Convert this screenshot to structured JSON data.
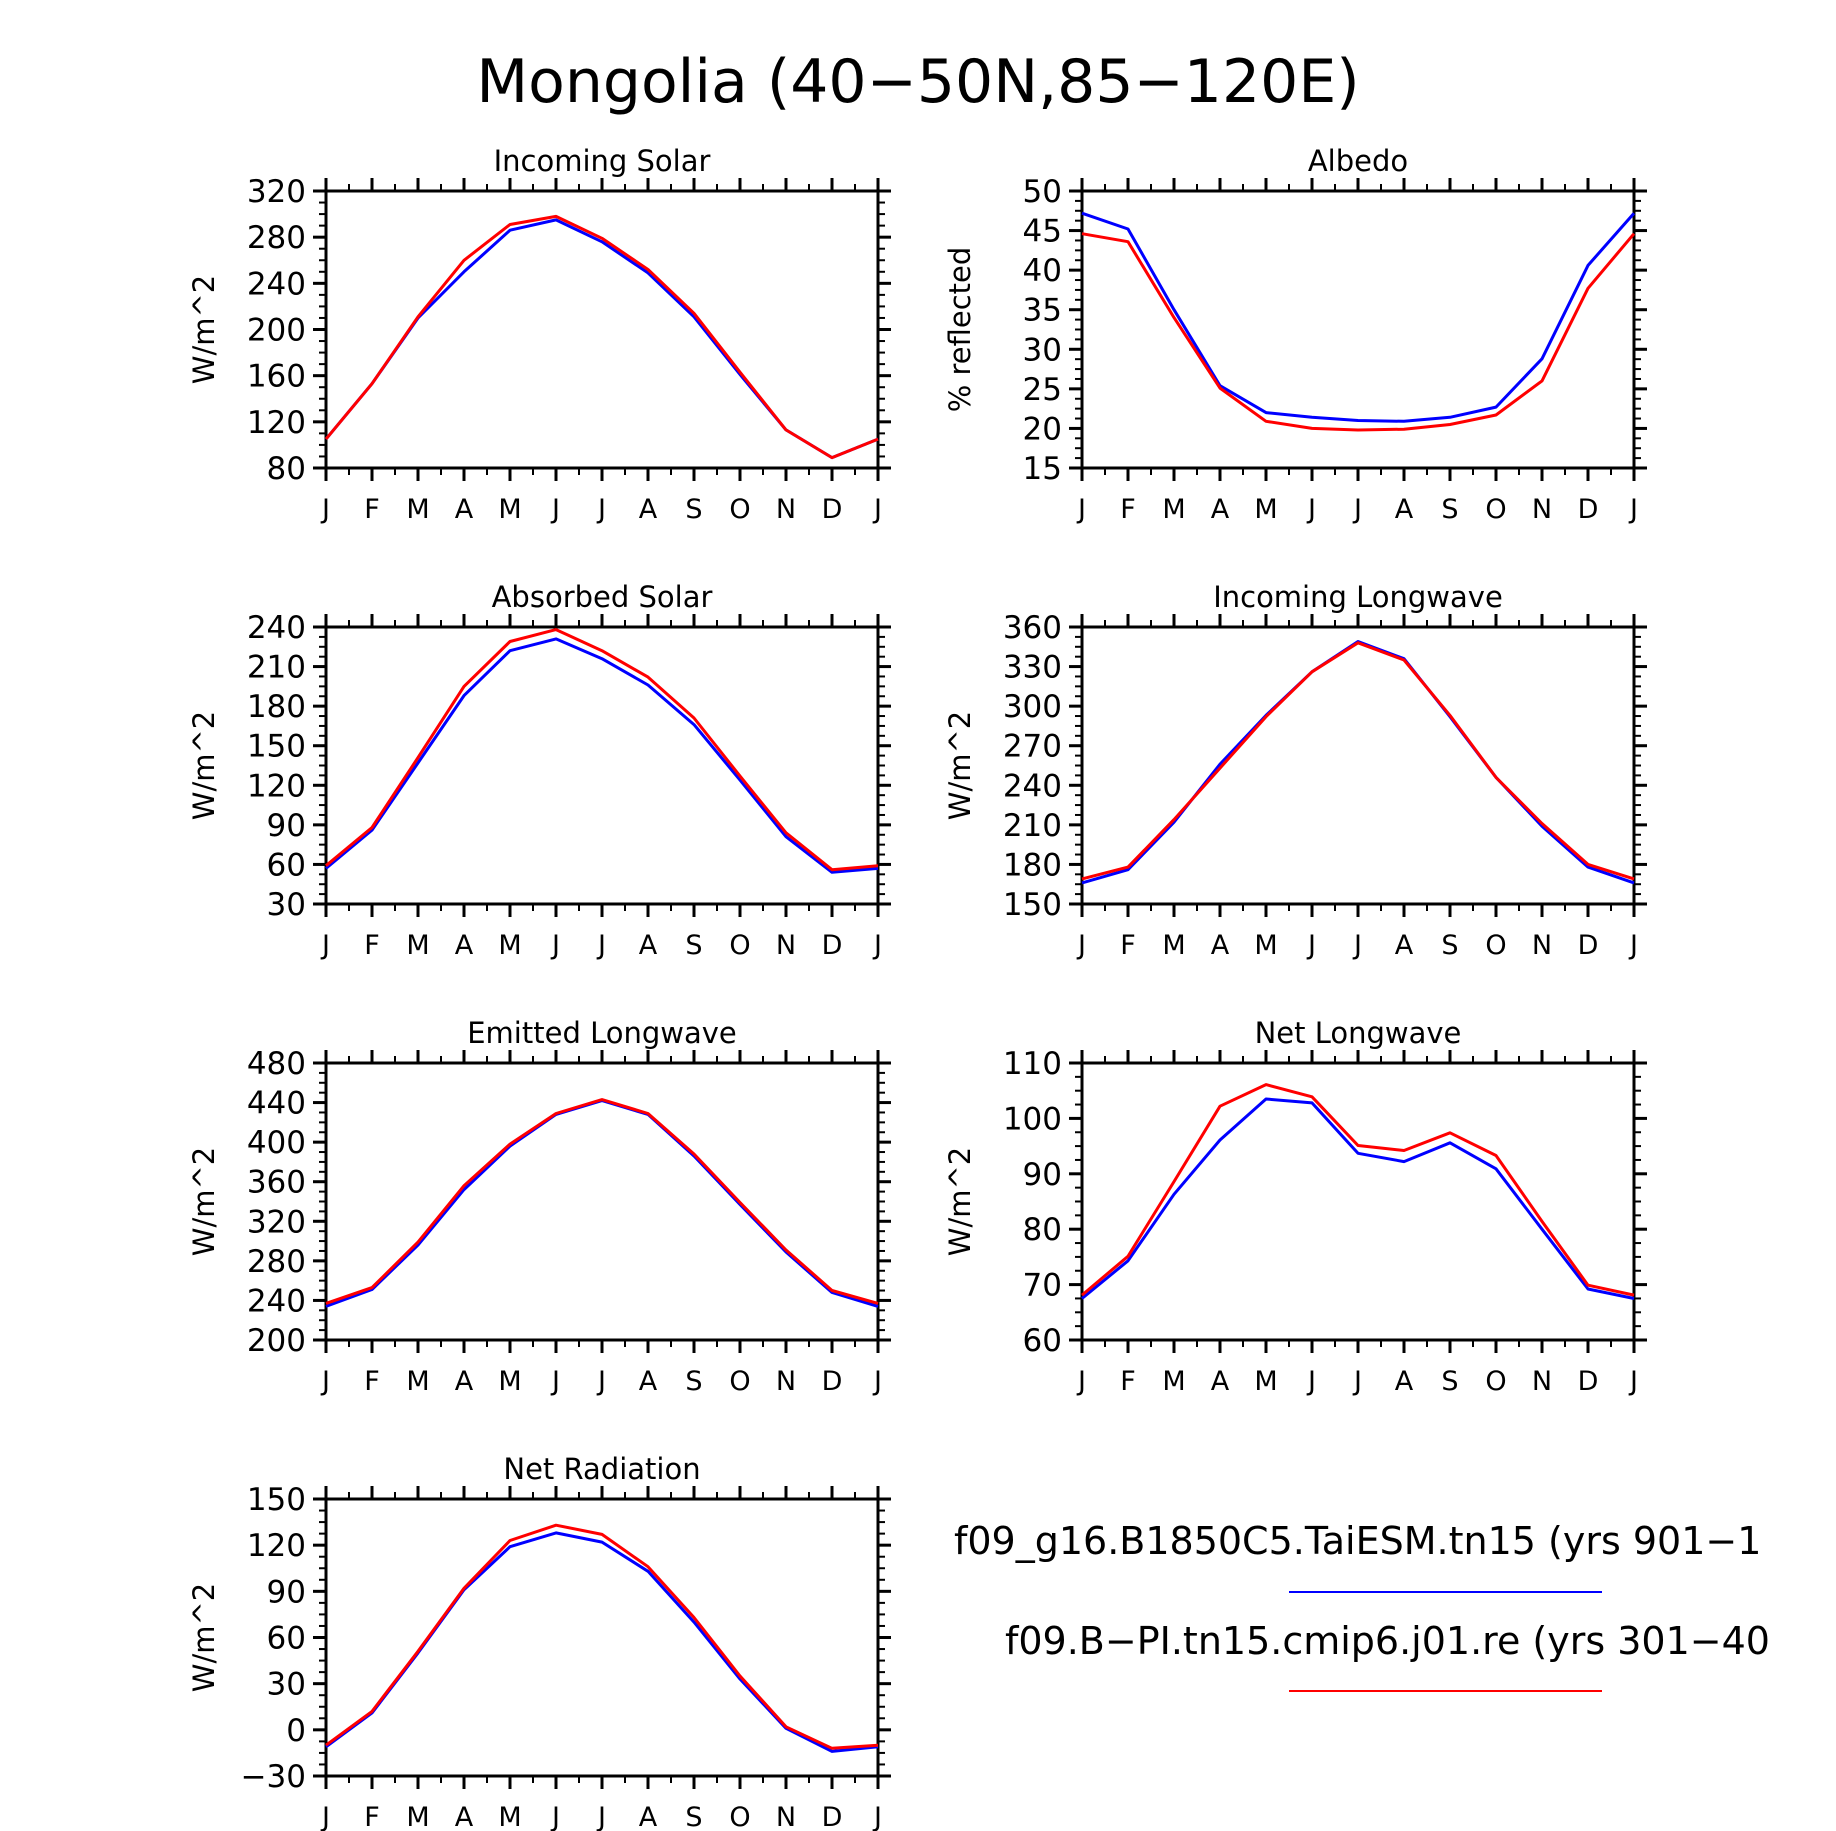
{
  "figure": {
    "title": "Mongolia (40−50N,85−120E)",
    "legend": [
      {
        "label": "f09_g16.B1850C5.TaiESM.tn15 (yrs 901−1",
        "color": "#0000ff"
      },
      {
        "label": "f09.B−PI.tn15.cmip6.j01.re (yrs 301−40",
        "color": "#ff0000"
      }
    ]
  },
  "colors": {
    "series1": "#0000ff",
    "series2": "#ff0000",
    "axis": "#000000"
  },
  "chart_data": [
    {
      "type": "line",
      "title": "Incoming Solar",
      "ylabel": "W/m^2",
      "x": [
        "J",
        "F",
        "M",
        "A",
        "M",
        "J",
        "J",
        "A",
        "S",
        "O",
        "N",
        "D",
        "J"
      ],
      "ylim": [
        80,
        320
      ],
      "yticks": [
        80,
        120,
        160,
        200,
        240,
        280,
        320
      ],
      "series": [
        {
          "values": [
            105,
            153,
            210,
            250,
            286,
            295,
            276,
            249,
            211,
            161,
            113,
            89,
            105
          ]
        },
        {
          "values": [
            105,
            153,
            211,
            260,
            291,
            298,
            279,
            252,
            214,
            163,
            113,
            89,
            105
          ]
        }
      ]
    },
    {
      "type": "line",
      "title": "Albedo",
      "ylabel": "% reflected",
      "x": [
        "J",
        "F",
        "M",
        "A",
        "M",
        "J",
        "J",
        "A",
        "S",
        "O",
        "N",
        "D",
        "J"
      ],
      "ylim": [
        15,
        50
      ],
      "yticks": [
        15,
        20,
        25,
        30,
        35,
        40,
        45,
        50
      ],
      "series": [
        {
          "values": [
            47.2,
            45.2,
            35.0,
            25.4,
            22.0,
            21.4,
            21.0,
            20.9,
            21.4,
            22.7,
            28.8,
            40.6,
            47.2
          ]
        },
        {
          "values": [
            44.6,
            43.6,
            34.0,
            25.1,
            20.9,
            20.0,
            19.8,
            19.9,
            20.5,
            21.7,
            26.0,
            37.7,
            44.6
          ]
        }
      ]
    },
    {
      "type": "line",
      "title": "Absorbed Solar",
      "ylabel": "W/m^2",
      "x": [
        "J",
        "F",
        "M",
        "A",
        "M",
        "J",
        "J",
        "A",
        "S",
        "O",
        "N",
        "D",
        "J"
      ],
      "ylim": [
        30,
        240
      ],
      "yticks": [
        30,
        60,
        90,
        120,
        150,
        180,
        210,
        240
      ],
      "series": [
        {
          "values": [
            57,
            86,
            137,
            188,
            222,
            231,
            216,
            196,
            166,
            124,
            81,
            54,
            57
          ]
        },
        {
          "values": [
            59,
            88,
            141,
            195,
            229,
            238,
            222,
            202,
            171,
            127,
            84,
            56,
            59
          ]
        }
      ]
    },
    {
      "type": "line",
      "title": "Incoming Longwave",
      "ylabel": "W/m^2",
      "x": [
        "J",
        "F",
        "M",
        "A",
        "M",
        "J",
        "J",
        "A",
        "S",
        "O",
        "N",
        "D",
        "J"
      ],
      "ylim": [
        150,
        360
      ],
      "yticks": [
        150,
        180,
        210,
        240,
        270,
        300,
        330,
        360
      ],
      "series": [
        {
          "values": [
            166,
            176,
            212,
            256,
            293,
            326,
            349,
            336,
            292,
            246,
            209,
            178,
            166
          ]
        },
        {
          "values": [
            169,
            178,
            214,
            253,
            292,
            326,
            348,
            335,
            293,
            246,
            211,
            180,
            169
          ]
        }
      ]
    },
    {
      "type": "line",
      "title": "Emitted Longwave",
      "ylabel": "W/m^2",
      "x": [
        "J",
        "F",
        "M",
        "A",
        "M",
        "J",
        "J",
        "A",
        "S",
        "O",
        "N",
        "D",
        "J"
      ],
      "ylim": [
        200,
        480
      ],
      "yticks": [
        200,
        240,
        280,
        320,
        360,
        400,
        440,
        480
      ],
      "series": [
        {
          "values": [
            234,
            251,
            296,
            352,
            396,
            428,
            442,
            428,
            386,
            337,
            289,
            248,
            234
          ]
        },
        {
          "values": [
            237,
            253,
            299,
            356,
            398,
            429,
            443,
            429,
            388,
            339,
            291,
            250,
            237
          ]
        }
      ]
    },
    {
      "type": "line",
      "title": "Net Longwave",
      "ylabel": "W/m^2",
      "x": [
        "J",
        "F",
        "M",
        "A",
        "M",
        "J",
        "J",
        "A",
        "S",
        "O",
        "N",
        "D",
        "J"
      ],
      "ylim": [
        60,
        110
      ],
      "yticks": [
        60,
        70,
        80,
        90,
        100,
        110
      ],
      "series": [
        {
          "values": [
            67.5,
            74.3,
            86.3,
            96.1,
            103.5,
            102.8,
            93.7,
            92.2,
            95.6,
            90.9,
            80.0,
            69.2,
            67.5
          ]
        },
        {
          "values": [
            68.1,
            75.1,
            88.6,
            102.2,
            106.1,
            103.9,
            95.1,
            94.2,
            97.4,
            93.3,
            81.4,
            69.9,
            68.1
          ]
        }
      ]
    },
    {
      "type": "line",
      "title": "Net Radiation",
      "ylabel": "W/m^2",
      "x": [
        "J",
        "F",
        "M",
        "A",
        "M",
        "J",
        "J",
        "A",
        "S",
        "O",
        "N",
        "D",
        "J"
      ],
      "ylim": [
        -30,
        150
      ],
      "yticks": [
        -30,
        0,
        30,
        60,
        90,
        120,
        150
      ],
      "series": [
        {
          "values": [
            -11,
            11,
            50,
            91,
            119,
            128,
            122,
            103,
            70,
            33,
            1,
            -14,
            -11
          ]
        },
        {
          "values": [
            -10,
            12,
            51,
            92,
            123,
            133,
            127,
            106,
            73,
            35,
            2,
            -12,
            -10
          ]
        }
      ]
    }
  ]
}
